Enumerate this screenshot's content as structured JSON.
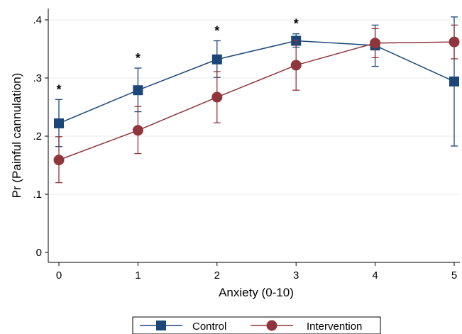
{
  "chart_data": {
    "type": "line",
    "xlabel": "Anxiety (0-10)",
    "ylabel": "Pr (Painful cannulation)",
    "xlim": [
      0,
      5
    ],
    "ylim": [
      0,
      0.4
    ],
    "xticks": [
      0,
      1,
      2,
      3,
      4,
      5
    ],
    "xtick_labels": [
      "0",
      "1",
      "2",
      "3",
      "4",
      "5"
    ],
    "yticks": [
      0,
      0.1,
      0.2,
      0.3,
      0.4
    ],
    "ytick_labels": [
      "0",
      ".1",
      ".2",
      ".3",
      ".4"
    ],
    "grid": true,
    "legend_position": "bottom",
    "x": [
      0,
      1,
      2,
      3,
      4,
      5
    ],
    "series": [
      {
        "name": "Control",
        "marker": "square",
        "color": "#1a4778",
        "values": [
          0.222,
          0.279,
          0.332,
          0.364,
          0.356,
          0.294
        ],
        "ci_low": [
          0.182,
          0.242,
          0.301,
          0.353,
          0.32,
          0.183
        ],
        "ci_high": [
          0.263,
          0.317,
          0.364,
          0.376,
          0.391,
          0.405
        ]
      },
      {
        "name": "Intervention",
        "marker": "circle",
        "color": "#90353b",
        "values": [
          0.159,
          0.21,
          0.267,
          0.322,
          0.36,
          0.362
        ],
        "ci_low": [
          0.12,
          0.17,
          0.223,
          0.279,
          0.335,
          0.333
        ],
        "ci_high": [
          0.199,
          0.251,
          0.311,
          0.365,
          0.385,
          0.391
        ]
      }
    ],
    "annotations": [
      {
        "x": 0,
        "text": "*"
      },
      {
        "x": 1,
        "text": "*"
      },
      {
        "x": 2,
        "text": "*"
      },
      {
        "x": 3,
        "text": "*"
      }
    ]
  }
}
